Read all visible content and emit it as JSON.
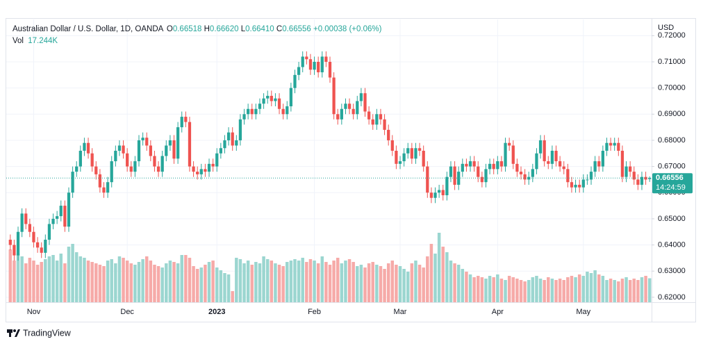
{
  "chart_data": {
    "type": "candlestick",
    "header": {
      "symbol": "Australian Dollar / U.S. Dollar, 1D, OANDA",
      "o_label": "O",
      "o": "0.66518",
      "h_label": "H",
      "h": "0.66620",
      "l_label": "L",
      "l": "0.66410",
      "c_label": "C",
      "c": "0.66556",
      "change": "+0.00038 (+0.06%)",
      "vol_label": "Vol",
      "vol": "17.244K"
    },
    "currency": "USD",
    "price_tag": {
      "price": "0.66556",
      "countdown": "14:24:59"
    },
    "brand": "TradingView",
    "up_color": "#26a69a",
    "down_color": "#ef5350",
    "volume_up_color": "#9bd6d0",
    "volume_down_color": "#f6aaa8",
    "grid": true,
    "ylim": [
      0.6181,
      0.7262
    ],
    "yticks": [
      {
        "value": 0.62,
        "label": "0.62000"
      },
      {
        "value": 0.63,
        "label": "0.63000"
      },
      {
        "value": 0.64,
        "label": "0.64000"
      },
      {
        "value": 0.65,
        "label": "0.65000"
      },
      {
        "value": 0.66,
        "label": "0.66000"
      },
      {
        "value": 0.67,
        "label": "0.67000"
      },
      {
        "value": 0.68,
        "label": "0.68000"
      },
      {
        "value": 0.69,
        "label": "0.69000"
      },
      {
        "value": 0.7,
        "label": "0.70000"
      },
      {
        "value": 0.71,
        "label": "0.71000"
      },
      {
        "value": 0.72,
        "label": "0.72000"
      }
    ],
    "y2lim": [
      0,
      60
    ],
    "categories": [
      null,
      null,
      null,
      null,
      null,
      null,
      "Nov",
      null,
      null,
      null,
      null,
      null,
      null,
      null,
      null,
      null,
      null,
      null,
      null,
      null,
      null,
      null,
      null,
      null,
      null,
      null,
      null,
      null,
      null,
      null,
      "Dec",
      null,
      null,
      null,
      null,
      null,
      null,
      null,
      null,
      null,
      null,
      null,
      null,
      null,
      null,
      null,
      null,
      null,
      null,
      null,
      null,
      null,
      null,
      "2023",
      null,
      null,
      null,
      null,
      null,
      null,
      null,
      null,
      null,
      null,
      null,
      null,
      null,
      null,
      null,
      null,
      null,
      null,
      null,
      null,
      null,
      null,
      null,
      null,
      "Feb",
      null,
      null,
      null,
      null,
      null,
      null,
      null,
      null,
      null,
      null,
      null,
      null,
      null,
      null,
      null,
      null,
      null,
      null,
      null,
      null,
      null,
      "Mar",
      null,
      null,
      null,
      null,
      null,
      null,
      null,
      null,
      null,
      null,
      null,
      null,
      null,
      null,
      null,
      null,
      null,
      null,
      null,
      null,
      null,
      null,
      null,
      null,
      "Apr",
      null,
      null,
      null,
      null,
      null,
      null,
      null,
      null,
      null,
      null,
      null,
      null,
      null,
      null,
      null,
      null,
      null,
      null,
      null,
      null,
      null,
      "May",
      null,
      null,
      null,
      null,
      null,
      null,
      null,
      null,
      null,
      null,
      null,
      null,
      null,
      null,
      null,
      null,
      null
    ],
    "open": [
      0.642,
      0.64,
      0.636,
      0.645,
      0.652,
      0.648,
      0.645,
      0.641,
      0.639,
      0.637,
      0.642,
      0.648,
      0.65,
      0.651,
      0.655,
      0.647,
      0.66,
      0.668,
      0.67,
      0.676,
      0.679,
      0.675,
      0.67,
      0.667,
      0.662,
      0.66,
      0.664,
      0.672,
      0.676,
      0.678,
      0.675,
      0.67,
      0.668,
      0.672,
      0.68,
      0.681,
      0.678,
      0.674,
      0.67,
      0.668,
      0.674,
      0.678,
      0.68,
      0.673,
      0.685,
      0.689,
      0.687,
      0.67,
      0.668,
      0.667,
      0.669,
      0.668,
      0.671,
      0.67,
      0.675,
      0.677,
      0.68,
      0.683,
      0.678,
      0.68,
      0.688,
      0.69,
      0.692,
      0.69,
      0.692,
      0.694,
      0.696,
      0.697,
      0.695,
      0.696,
      0.692,
      0.69,
      0.693,
      0.7,
      0.705,
      0.708,
      0.712,
      0.711,
      0.707,
      0.71,
      0.706,
      0.712,
      0.71,
      0.704,
      0.69,
      0.688,
      0.692,
      0.694,
      0.692,
      0.69,
      0.695,
      0.698,
      0.691,
      0.688,
      0.686,
      0.69,
      0.688,
      0.684,
      0.68,
      0.676,
      0.671,
      0.672,
      0.675,
      0.677,
      0.673,
      0.677,
      0.676,
      0.67,
      0.66,
      0.658,
      0.66,
      0.661,
      0.659,
      0.666,
      0.67,
      0.663,
      0.668,
      0.671,
      0.67,
      0.672,
      0.67,
      0.666,
      0.664,
      0.669,
      0.671,
      0.669,
      0.672,
      0.67,
      0.679,
      0.678,
      0.671,
      0.668,
      0.667,
      0.665,
      0.666,
      0.669,
      0.675,
      0.68,
      0.672,
      0.671,
      0.676,
      0.672,
      0.67,
      0.669,
      0.664,
      0.662,
      0.663,
      0.662,
      0.665,
      0.665,
      0.668,
      0.672,
      0.67,
      0.676,
      0.679,
      0.678,
      0.679,
      0.676,
      0.666,
      0.67,
      0.668,
      0.665,
      0.663,
      0.666,
      0.66518
    ],
    "high": [
      0.644,
      0.642,
      0.647,
      0.654,
      0.654,
      0.65,
      0.647,
      0.643,
      0.641,
      0.644,
      0.65,
      0.652,
      0.653,
      0.657,
      0.657,
      0.662,
      0.67,
      0.672,
      0.678,
      0.681,
      0.681,
      0.677,
      0.672,
      0.669,
      0.664,
      0.666,
      0.674,
      0.678,
      0.68,
      0.68,
      0.677,
      0.672,
      0.674,
      0.682,
      0.683,
      0.683,
      0.68,
      0.676,
      0.672,
      0.676,
      0.68,
      0.682,
      0.682,
      0.687,
      0.691,
      0.691,
      0.689,
      0.672,
      0.67,
      0.671,
      0.671,
      0.673,
      0.673,
      0.677,
      0.679,
      0.682,
      0.685,
      0.685,
      0.682,
      0.69,
      0.692,
      0.694,
      0.694,
      0.694,
      0.696,
      0.698,
      0.699,
      0.699,
      0.698,
      0.698,
      0.694,
      0.695,
      0.702,
      0.707,
      0.71,
      0.714,
      0.714,
      0.713,
      0.712,
      0.712,
      0.714,
      0.714,
      0.712,
      0.706,
      0.692,
      0.694,
      0.696,
      0.696,
      0.694,
      0.697,
      0.7,
      0.7,
      0.693,
      0.69,
      0.692,
      0.692,
      0.69,
      0.686,
      0.682,
      0.678,
      0.674,
      0.677,
      0.679,
      0.679,
      0.679,
      0.679,
      0.678,
      0.672,
      0.662,
      0.662,
      0.663,
      0.663,
      0.668,
      0.672,
      0.672,
      0.67,
      0.673,
      0.673,
      0.674,
      0.674,
      0.672,
      0.668,
      0.671,
      0.673,
      0.673,
      0.674,
      0.674,
      0.681,
      0.681,
      0.68,
      0.673,
      0.67,
      0.669,
      0.668,
      0.671,
      0.677,
      0.682,
      0.682,
      0.674,
      0.678,
      0.678,
      0.674,
      0.672,
      0.671,
      0.666,
      0.665,
      0.665,
      0.667,
      0.667,
      0.67,
      0.674,
      0.674,
      0.678,
      0.681,
      0.681,
      0.681,
      0.681,
      0.678,
      0.672,
      0.672,
      0.67,
      0.667,
      0.668,
      0.668,
      0.6662
    ],
    "low": [
      0.638,
      0.634,
      0.634,
      0.643,
      0.646,
      0.643,
      0.639,
      0.637,
      0.635,
      0.635,
      0.64,
      0.646,
      0.648,
      0.649,
      0.645,
      0.645,
      0.658,
      0.666,
      0.668,
      0.674,
      0.673,
      0.668,
      0.665,
      0.66,
      0.658,
      0.658,
      0.662,
      0.67,
      0.674,
      0.673,
      0.668,
      0.666,
      0.666,
      0.67,
      0.678,
      0.676,
      0.672,
      0.668,
      0.666,
      0.666,
      0.672,
      0.676,
      0.671,
      0.671,
      0.683,
      0.685,
      0.668,
      0.666,
      0.665,
      0.665,
      0.666,
      0.666,
      0.668,
      0.668,
      0.673,
      0.675,
      0.678,
      0.676,
      0.676,
      0.678,
      0.686,
      0.688,
      0.688,
      0.688,
      0.69,
      0.692,
      0.694,
      0.693,
      0.693,
      0.69,
      0.688,
      0.688,
      0.691,
      0.698,
      0.703,
      0.706,
      0.709,
      0.705,
      0.705,
      0.704,
      0.704,
      0.708,
      0.702,
      0.688,
      0.686,
      0.686,
      0.69,
      0.69,
      0.688,
      0.688,
      0.693,
      0.689,
      0.686,
      0.684,
      0.684,
      0.686,
      0.682,
      0.678,
      0.674,
      0.669,
      0.669,
      0.67,
      0.673,
      0.671,
      0.671,
      0.674,
      0.668,
      0.658,
      0.656,
      0.656,
      0.658,
      0.657,
      0.657,
      0.664,
      0.661,
      0.661,
      0.666,
      0.668,
      0.668,
      0.668,
      0.664,
      0.662,
      0.662,
      0.667,
      0.667,
      0.667,
      0.668,
      0.668,
      0.676,
      0.669,
      0.666,
      0.665,
      0.663,
      0.663,
      0.664,
      0.667,
      0.673,
      0.67,
      0.669,
      0.669,
      0.67,
      0.668,
      0.667,
      0.662,
      0.66,
      0.66,
      0.66,
      0.66,
      0.663,
      0.663,
      0.666,
      0.668,
      0.668,
      0.674,
      0.676,
      0.676,
      0.674,
      0.664,
      0.664,
      0.666,
      0.663,
      0.661,
      0.661,
      0.663,
      0.6641
    ],
    "close": [
      0.64,
      0.636,
      0.645,
      0.652,
      0.648,
      0.645,
      0.641,
      0.639,
      0.637,
      0.642,
      0.648,
      0.65,
      0.651,
      0.655,
      0.647,
      0.66,
      0.668,
      0.67,
      0.676,
      0.679,
      0.675,
      0.67,
      0.667,
      0.662,
      0.66,
      0.664,
      0.672,
      0.676,
      0.678,
      0.675,
      0.67,
      0.668,
      0.672,
      0.68,
      0.681,
      0.678,
      0.674,
      0.67,
      0.668,
      0.674,
      0.678,
      0.68,
      0.673,
      0.685,
      0.689,
      0.687,
      0.67,
      0.668,
      0.667,
      0.669,
      0.668,
      0.671,
      0.67,
      0.675,
      0.677,
      0.68,
      0.683,
      0.678,
      0.68,
      0.688,
      0.69,
      0.692,
      0.69,
      0.692,
      0.694,
      0.696,
      0.697,
      0.695,
      0.696,
      0.692,
      0.69,
      0.693,
      0.7,
      0.705,
      0.708,
      0.712,
      0.711,
      0.707,
      0.71,
      0.706,
      0.712,
      0.71,
      0.704,
      0.69,
      0.688,
      0.692,
      0.694,
      0.692,
      0.69,
      0.695,
      0.698,
      0.691,
      0.688,
      0.686,
      0.69,
      0.688,
      0.684,
      0.68,
      0.676,
      0.671,
      0.672,
      0.675,
      0.677,
      0.673,
      0.677,
      0.676,
      0.67,
      0.66,
      0.658,
      0.66,
      0.661,
      0.659,
      0.666,
      0.67,
      0.663,
      0.668,
      0.671,
      0.67,
      0.672,
      0.67,
      0.666,
      0.664,
      0.669,
      0.671,
      0.669,
      0.672,
      0.67,
      0.679,
      0.678,
      0.671,
      0.668,
      0.667,
      0.665,
      0.666,
      0.669,
      0.675,
      0.68,
      0.672,
      0.671,
      0.676,
      0.672,
      0.67,
      0.669,
      0.664,
      0.662,
      0.663,
      0.662,
      0.665,
      0.665,
      0.668,
      0.672,
      0.67,
      0.676,
      0.679,
      0.678,
      0.679,
      0.676,
      0.666,
      0.67,
      0.668,
      0.665,
      0.663,
      0.666,
      0.665,
      0.66556
    ],
    "volume": [
      38,
      30,
      35,
      33,
      28,
      32,
      30,
      27,
      29,
      31,
      33,
      34,
      30,
      35,
      28,
      40,
      42,
      36,
      33,
      32,
      30,
      29,
      28,
      27,
      26,
      30,
      31,
      28,
      33,
      32,
      30,
      28,
      27,
      29,
      31,
      33,
      30,
      27,
      26,
      25,
      28,
      30,
      29,
      28,
      34,
      34,
      32,
      26,
      24,
      25,
      27,
      29,
      30,
      25,
      23,
      21,
      20,
      8,
      32,
      31,
      28,
      30,
      27,
      29,
      28,
      33,
      31,
      30,
      28,
      27,
      26,
      29,
      30,
      31,
      30,
      32,
      29,
      31,
      30,
      28,
      33,
      29,
      27,
      30,
      32,
      28,
      30,
      31,
      29,
      26,
      27,
      25,
      28,
      29,
      27,
      26,
      24,
      28,
      30,
      27,
      26,
      24,
      22,
      28,
      30,
      27,
      25,
      33,
      42,
      35,
      50,
      40,
      36,
      30,
      28,
      27,
      24,
      22,
      20,
      18,
      19,
      18,
      17,
      19,
      18,
      20,
      17,
      16,
      19,
      18,
      17,
      16,
      15,
      16,
      18,
      19,
      17,
      16,
      18,
      17,
      16,
      17,
      16,
      18,
      19,
      18,
      20,
      19,
      22,
      21,
      23,
      20,
      19,
      16,
      17,
      16,
      15,
      17,
      18,
      16,
      17,
      16,
      18,
      19,
      17.244
    ]
  }
}
